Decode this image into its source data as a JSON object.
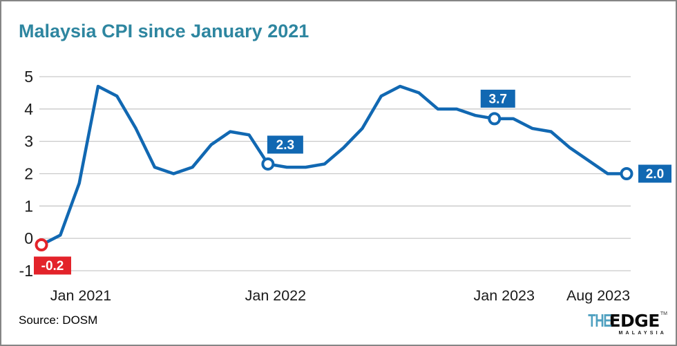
{
  "title": "Malaysia CPI since January 2021",
  "source": "Source: DOSM",
  "logo": {
    "the": "THE",
    "edge": "EDGE",
    "tm": "TM",
    "malaysia": "MALAYSIA"
  },
  "colors": {
    "title": "#2E86A0",
    "line": "#1168B2",
    "label_blue": "#1168B2",
    "label_red": "#E3232A",
    "grid": "#C9C9C9",
    "axis_text": "#1A1A1A",
    "logo_teal": "#4FA0C0"
  },
  "chart_data": {
    "type": "line",
    "title": "Malaysia CPI since January 2021",
    "xlabel": "",
    "ylabel": "",
    "ylim": [
      -1,
      5
    ],
    "yticks": [
      5,
      4,
      3,
      2,
      1,
      0,
      -1
    ],
    "grid": "horizontal",
    "legend": "none",
    "x": [
      "Jan 2021",
      "Feb 2021",
      "Mar 2021",
      "Apr 2021",
      "May 2021",
      "Jun 2021",
      "Jul 2021",
      "Aug 2021",
      "Sep 2021",
      "Oct 2021",
      "Nov 2021",
      "Dec 2021",
      "Jan 2022",
      "Feb 2022",
      "Mar 2022",
      "Apr 2022",
      "May 2022",
      "Jun 2022",
      "Jul 2022",
      "Aug 2022",
      "Sep 2022",
      "Oct 2022",
      "Nov 2022",
      "Dec 2022",
      "Jan 2023",
      "Feb 2023",
      "Mar 2023",
      "Apr 2023",
      "May 2023",
      "Jun 2023",
      "Jul 2023",
      "Aug 2023"
    ],
    "values": [
      -0.2,
      0.1,
      1.7,
      4.7,
      4.4,
      3.4,
      2.2,
      2.0,
      2.2,
      2.9,
      3.3,
      3.2,
      2.3,
      2.2,
      2.2,
      2.3,
      2.8,
      3.4,
      4.4,
      4.7,
      4.5,
      4.0,
      4.0,
      3.8,
      3.7,
      3.7,
      3.4,
      3.3,
      2.8,
      2.4,
      2.0,
      2.0
    ],
    "xticks": [
      {
        "index": 0,
        "label": "Jan 2021"
      },
      {
        "index": 12,
        "label": "Jan 2022"
      },
      {
        "index": 24,
        "label": "Jan 2023"
      },
      {
        "index": 31,
        "label": "Aug 2023"
      }
    ],
    "markers": [
      {
        "index": 0,
        "label": "-0.2",
        "color": "#E3232A",
        "placement": "below"
      },
      {
        "index": 12,
        "label": "2.3",
        "color": "#1168B2",
        "placement": "above-right"
      },
      {
        "index": 24,
        "label": "3.7",
        "color": "#1168B2",
        "placement": "above"
      },
      {
        "index": 31,
        "label": "2.0",
        "color": "#1168B2",
        "placement": "right"
      }
    ]
  }
}
